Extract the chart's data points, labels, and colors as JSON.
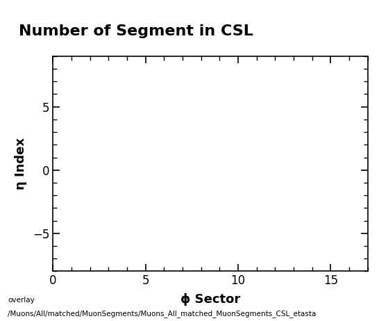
{
  "title": "Number of Segment in CSL",
  "xlabel": "ϕ Sector",
  "ylabel": "η Index",
  "xlim": [
    0,
    17
  ],
  "ylim": [
    -8,
    9
  ],
  "xticks": [
    0,
    5,
    10,
    15
  ],
  "yticks": [
    -5,
    0,
    5
  ],
  "bg_color": "#ffffff",
  "title_box_facecolor": "#e8e8e8",
  "title_box_edgecolor": "#000000",
  "title_fontsize": 16,
  "label_fontsize": 13,
  "tick_fontsize": 12,
  "footer_line1": "overlay",
  "footer_line2": "/Muons/All/matched/MuonSegments/Muons_All_matched_MuonSegments_CSL_etasta",
  "footer_fontsize": 7.5
}
